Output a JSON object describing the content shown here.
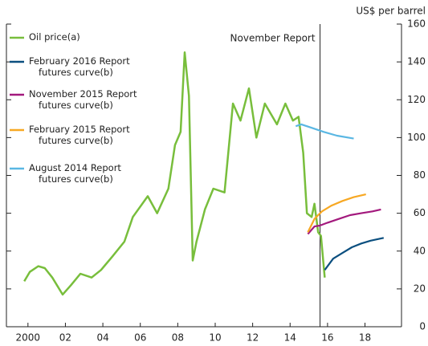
{
  "chart_data": {
    "type": "line",
    "y_axis_label": "US$ per barrel",
    "annotation": {
      "x": 2015.6,
      "label": "November Report"
    },
    "xlim": [
      1998.85,
      2019.95
    ],
    "xticks": [
      {
        "value": 2000,
        "label": "2000"
      },
      {
        "value": 2002,
        "label": "02"
      },
      {
        "value": 2004,
        "label": "04"
      },
      {
        "value": 2006,
        "label": "06"
      },
      {
        "value": 2008,
        "label": "08"
      },
      {
        "value": 2010,
        "label": "10"
      },
      {
        "value": 2012,
        "label": "12"
      },
      {
        "value": 2014,
        "label": "14"
      },
      {
        "value": 2016,
        "label": "16"
      },
      {
        "value": 2018,
        "label": "18"
      }
    ],
    "ylim": [
      0,
      160
    ],
    "yticks": [
      0,
      20,
      40,
      60,
      80,
      100,
      120,
      140,
      160
    ],
    "series": [
      {
        "name": "Oil price(a)",
        "color": "#78be3c",
        "x": [
          1999.8,
          2000.1,
          2000.55,
          2000.9,
          2001.3,
          2001.85,
          2002.3,
          2002.8,
          2003.4,
          2003.9,
          2004.5,
          2005.15,
          2005.6,
          2006.4,
          2006.9,
          2007.5,
          2007.85,
          2008.15,
          2008.37,
          2008.6,
          2008.8,
          2009.0,
          2009.45,
          2009.9,
          2010.5,
          2010.95,
          2011.35,
          2011.8,
          2012.2,
          2012.65,
          2013.3,
          2013.75,
          2014.15,
          2014.45,
          2014.7,
          2014.9,
          2015.15,
          2015.3,
          2015.5,
          2015.65,
          2015.85
        ],
        "values": [
          24,
          29,
          32,
          31,
          26,
          17,
          22,
          28,
          26,
          30,
          37,
          45,
          58,
          69,
          60,
          73,
          96,
          103,
          145,
          122,
          35,
          45,
          62,
          73,
          71,
          118,
          109,
          126,
          100,
          118,
          107,
          118,
          109,
          111,
          92,
          60,
          58,
          65,
          50,
          48,
          26
        ]
      },
      {
        "name": "February 2016 Report futures curve(b)",
        "color": "#0b4f7f",
        "x": [
          2015.85,
          2016.3,
          2016.8,
          2017.3,
          2017.8,
          2018.3,
          2019.0
        ],
        "values": [
          30,
          36,
          39,
          42,
          44,
          45.5,
          47
        ]
      },
      {
        "name": "November 2015 Report futures curve(b)",
        "color": "#a3197d",
        "x": [
          2014.95,
          2015.3,
          2015.6,
          2016.0,
          2016.6,
          2017.2,
          2017.8,
          2018.4,
          2018.85
        ],
        "values": [
          49,
          53,
          53.5,
          55,
          57,
          59,
          60,
          61,
          62
        ]
      },
      {
        "name": "February 2015 Report futures curve(b)",
        "color": "#f7a823",
        "x": [
          2014.95,
          2015.3,
          2015.7,
          2016.2,
          2016.8,
          2017.4,
          2018.05
        ],
        "values": [
          50,
          57,
          61,
          64,
          66.5,
          68.5,
          70
        ]
      },
      {
        "name": "August 2014 Report futures curve(b)",
        "color": "#5ab7e3",
        "x": [
          2014.3,
          2014.6,
          2015.2,
          2015.8,
          2016.5,
          2017.4
        ],
        "values": [
          106,
          107,
          105,
          103,
          101,
          99.5
        ]
      }
    ]
  }
}
